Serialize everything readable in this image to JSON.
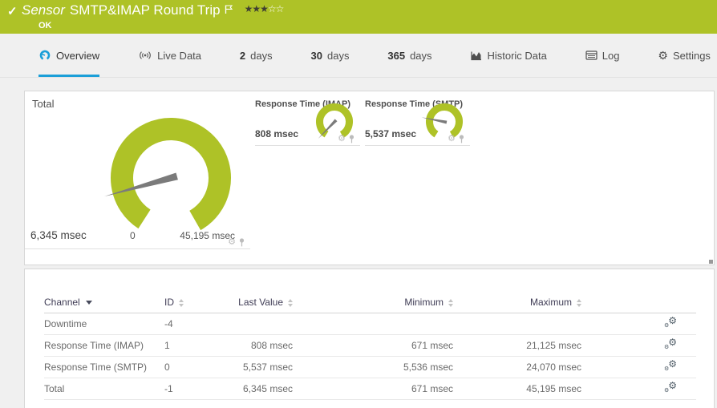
{
  "header": {
    "check": "✓",
    "type_label": "Sensor",
    "title": "SMTP&IMAP Round Trip",
    "status": "OK",
    "rating": {
      "filled": 3,
      "total": 5
    }
  },
  "tabs": {
    "overview": {
      "label": "Overview"
    },
    "live_data": {
      "label": "Live Data"
    },
    "days2": {
      "num": "2",
      "unit": "days"
    },
    "days30": {
      "num": "30",
      "unit": "days"
    },
    "days365": {
      "num": "365",
      "unit": "days"
    },
    "historic": {
      "label": "Historic Data"
    },
    "log": {
      "label": "Log"
    },
    "settings": {
      "label": "Settings"
    }
  },
  "gauges": {
    "total": {
      "title": "Total",
      "value": 6345,
      "max": 45195,
      "value_label": "6,345 msec",
      "scale_min_label": "0",
      "scale_max_label": "45,195 msec"
    },
    "imap": {
      "title": "Response Time (IMAP)",
      "value": 808,
      "max": 21125,
      "value_label": "808 msec"
    },
    "smtp": {
      "title": "Response Time (SMTP)",
      "value": 5537,
      "max": 24070,
      "value_label": "5,537 msec"
    }
  },
  "table": {
    "headers": {
      "channel": "Channel",
      "id": "ID",
      "last": "Last Value",
      "min": "Minimum",
      "max": "Maximum"
    },
    "rows": [
      {
        "channel": "Downtime",
        "id": "-4",
        "last": "",
        "min": "",
        "max": ""
      },
      {
        "channel": "Response Time (IMAP)",
        "id": "1",
        "last": "808 msec",
        "min": "671 msec",
        "max": "21,125 msec"
      },
      {
        "channel": "Response Time (SMTP)",
        "id": "0",
        "last": "5,537 msec",
        "min": "5,536 msec",
        "max": "24,070 msec"
      },
      {
        "channel": "Total",
        "id": "-1",
        "last": "6,345 msec",
        "min": "671 msec",
        "max": "45,195 msec"
      }
    ]
  },
  "colors": {
    "status_green": "#aec227",
    "gauge_green": "#aec227",
    "accent_blue": "#1b9fd8",
    "needle_gray": "#7b7b7b"
  }
}
